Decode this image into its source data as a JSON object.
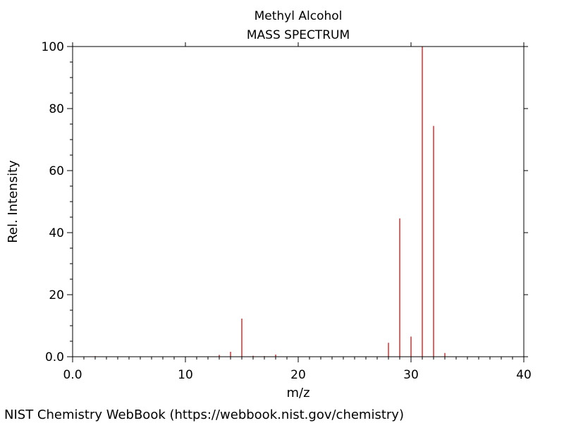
{
  "chart_data": {
    "type": "bar",
    "title": "Methyl Alcohol",
    "subtitle": "MASS SPECTRUM",
    "xlabel": "m/z",
    "ylabel": "Rel. Intensity",
    "xlim": [
      0,
      40
    ],
    "ylim": [
      0,
      100
    ],
    "x_ticks": [
      0,
      10,
      20,
      30,
      40
    ],
    "x_tick_labels": [
      "0.0",
      "10",
      "20",
      "30",
      "40"
    ],
    "y_ticks": [
      0,
      20,
      40,
      60,
      80,
      100
    ],
    "y_tick_labels": [
      "0.0",
      "20",
      "40",
      "60",
      "80",
      "100"
    ],
    "grid": false,
    "bar_color": "#cc0000",
    "peaks": [
      {
        "mz": 2,
        "intensity": 0.2
      },
      {
        "mz": 13,
        "intensity": 0.6
      },
      {
        "mz": 14,
        "intensity": 1.6
      },
      {
        "mz": 15,
        "intensity": 12.3
      },
      {
        "mz": 16,
        "intensity": 0.3
      },
      {
        "mz": 17,
        "intensity": 0.2
      },
      {
        "mz": 18,
        "intensity": 0.7
      },
      {
        "mz": 28,
        "intensity": 4.5
      },
      {
        "mz": 29,
        "intensity": 44.6
      },
      {
        "mz": 30,
        "intensity": 6.5
      },
      {
        "mz": 31,
        "intensity": 100
      },
      {
        "mz": 32,
        "intensity": 74.4
      },
      {
        "mz": 33,
        "intensity": 1.2
      }
    ]
  },
  "footer": {
    "credit": "NIST Chemistry WebBook (https://webbook.nist.gov/chemistry)"
  }
}
